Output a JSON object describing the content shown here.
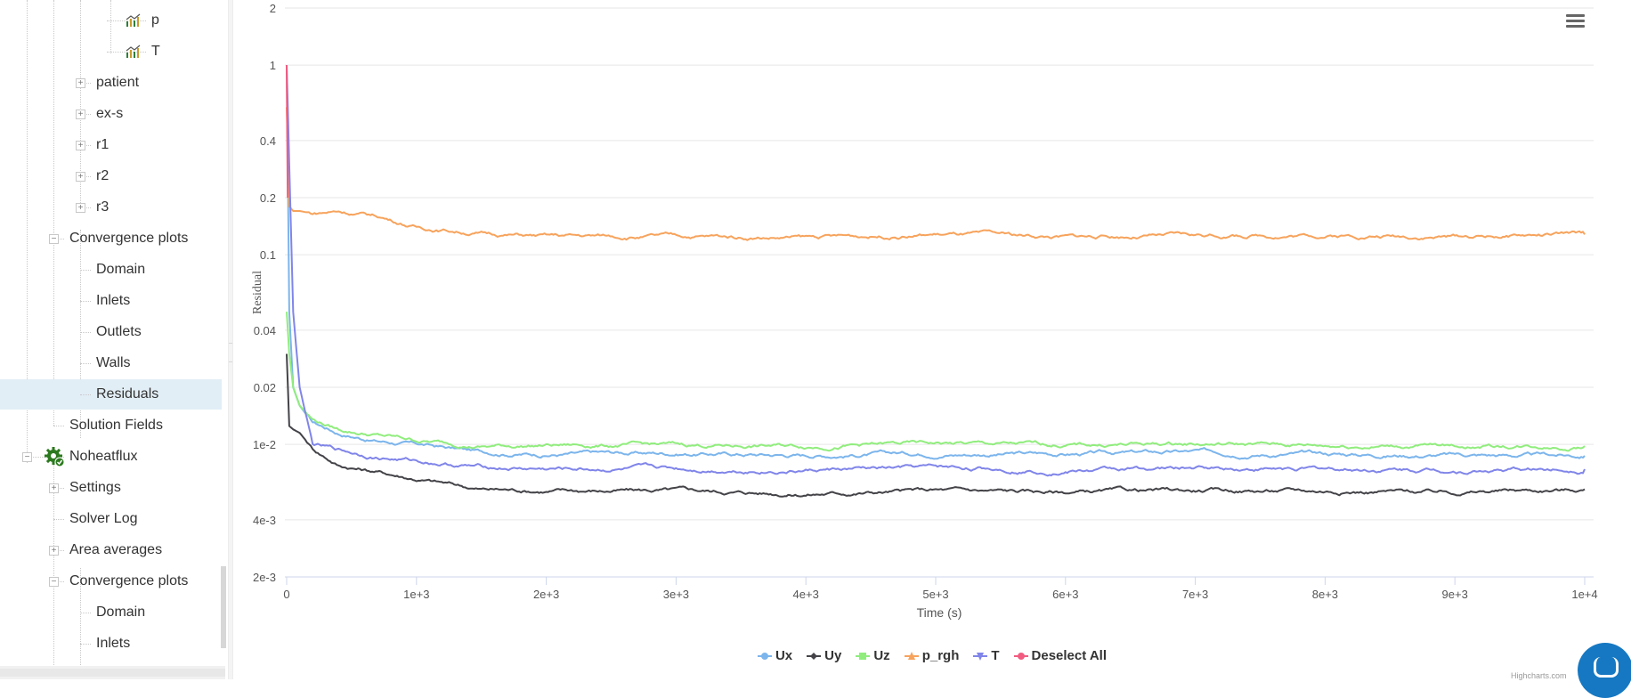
{
  "sidebar": {
    "rows": [
      {
        "label": "p",
        "icon": "chart-icon",
        "depth": 4
      },
      {
        "label": "T",
        "icon": "chart-icon",
        "depth": 4
      },
      {
        "label": "patient",
        "toggle": "+",
        "depth": 3
      },
      {
        "label": "ex-s",
        "toggle": "+",
        "depth": 3
      },
      {
        "label": "r1",
        "toggle": "+",
        "depth": 3
      },
      {
        "label": "r2",
        "toggle": "+",
        "depth": 3
      },
      {
        "label": "r3",
        "toggle": "+",
        "depth": 3
      },
      {
        "label": "Convergence plots",
        "toggle": "−",
        "depth": 2
      },
      {
        "label": "Domain",
        "depth": 3
      },
      {
        "label": "Inlets",
        "depth": 3
      },
      {
        "label": "Outlets",
        "depth": 3
      },
      {
        "label": "Walls",
        "depth": 3
      },
      {
        "label": "Residuals",
        "depth": 3,
        "selected": true
      },
      {
        "label": "Solution Fields",
        "depth": 2
      },
      {
        "label": "Noheatflux",
        "toggle": "−",
        "depth": 1,
        "icon": "gear-check-icon"
      },
      {
        "label": "Settings",
        "toggle": "+",
        "depth": 2
      },
      {
        "label": "Solver Log",
        "depth": 2
      },
      {
        "label": "Area averages",
        "toggle": "+",
        "depth": 2
      },
      {
        "label": "Convergence plots",
        "toggle": "−",
        "depth": 2
      },
      {
        "label": "Domain",
        "depth": 3
      },
      {
        "label": "Inlets",
        "depth": 3
      }
    ]
  },
  "chart_data": {
    "type": "line",
    "title": "",
    "xlabel": "Time (s)",
    "ylabel": "Residual",
    "y_scale": "log",
    "ylim": [
      0.002,
      2
    ],
    "xlim": [
      0,
      10000
    ],
    "y_ticks": [
      "2",
      "1",
      "0.4",
      "0.2",
      "0.1",
      "0.04",
      "0.02",
      "1e-2",
      "4e-3",
      "2e-3"
    ],
    "y_tick_values": [
      2,
      1,
      0.4,
      0.2,
      0.1,
      0.04,
      0.02,
      0.01,
      0.004,
      0.002
    ],
    "x_ticks": [
      "0",
      "1e+3",
      "2e+3",
      "3e+3",
      "4e+3",
      "5e+3",
      "6e+3",
      "7e+3",
      "8e+3",
      "9e+3",
      "1e+4"
    ],
    "x_tick_values": [
      0,
      1000,
      2000,
      3000,
      4000,
      5000,
      6000,
      7000,
      8000,
      9000,
      10000
    ],
    "grid": true,
    "legend_position": "bottom-center",
    "series": [
      {
        "name": "Ux",
        "color": "#7cb5ec",
        "marker": "circle",
        "x": [
          0,
          20,
          50,
          100,
          200,
          400,
          700,
          1000,
          1500,
          2000,
          3000,
          4000,
          5000,
          6000,
          7000,
          8000,
          9000,
          10000
        ],
        "y": [
          1,
          0.05,
          0.02,
          0.016,
          0.013,
          0.0115,
          0.0105,
          0.01,
          0.0091,
          0.0089,
          0.009,
          0.0088,
          0.009,
          0.0089,
          0.0091,
          0.0089,
          0.0088,
          0.0087
        ]
      },
      {
        "name": "Uy",
        "color": "#434348",
        "marker": "diamond",
        "x": [
          0,
          20,
          50,
          100,
          200,
          400,
          700,
          1000,
          1500,
          2000,
          3000,
          4000,
          5000,
          6000,
          7000,
          8000,
          9000,
          10000
        ],
        "y": [
          0.03,
          0.0125,
          0.012,
          0.0115,
          0.0095,
          0.0078,
          0.0072,
          0.0066,
          0.0058,
          0.0057,
          0.0057,
          0.0055,
          0.0057,
          0.0056,
          0.0057,
          0.0057,
          0.0056,
          0.0058
        ]
      },
      {
        "name": "Uz",
        "color": "#90ed7d",
        "marker": "square",
        "x": [
          0,
          20,
          50,
          100,
          200,
          400,
          700,
          1000,
          1500,
          2000,
          3000,
          4000,
          5000,
          6000,
          7000,
          8000,
          9000,
          10000
        ],
        "y": [
          0.05,
          0.03,
          0.02,
          0.016,
          0.0135,
          0.012,
          0.0112,
          0.0105,
          0.0098,
          0.0099,
          0.0099,
          0.0098,
          0.0101,
          0.0099,
          0.0101,
          0.0099,
          0.0098,
          0.0098
        ]
      },
      {
        "name": "p_rgh",
        "color": "#f7a35c",
        "marker": "triangle",
        "x": [
          0,
          20,
          50,
          100,
          200,
          400,
          700,
          1000,
          1500,
          2000,
          3000,
          4000,
          5000,
          6000,
          7000,
          8000,
          9000,
          10000
        ],
        "y": [
          0.6,
          0.18,
          0.17,
          0.17,
          0.165,
          0.17,
          0.16,
          0.14,
          0.13,
          0.125,
          0.125,
          0.123,
          0.128,
          0.124,
          0.126,
          0.127,
          0.125,
          0.128
        ]
      },
      {
        "name": "T",
        "color": "#8085e9",
        "marker": "triangle-down",
        "x": [
          0,
          20,
          50,
          100,
          200,
          400,
          700,
          1000,
          1500,
          2000,
          3000,
          4000,
          5000,
          6000,
          7000,
          8000,
          9000,
          10000
        ],
        "y": [
          1,
          0.3,
          0.05,
          0.02,
          0.01,
          0.0093,
          0.0086,
          0.0082,
          0.0076,
          0.0074,
          0.0074,
          0.0073,
          0.0075,
          0.0073,
          0.0075,
          0.0074,
          0.0073,
          0.0074
        ]
      }
    ],
    "legend_extra": {
      "name": "Deselect All",
      "color": "#f15c80",
      "marker": "circle"
    },
    "credits": "Highcharts.com"
  }
}
